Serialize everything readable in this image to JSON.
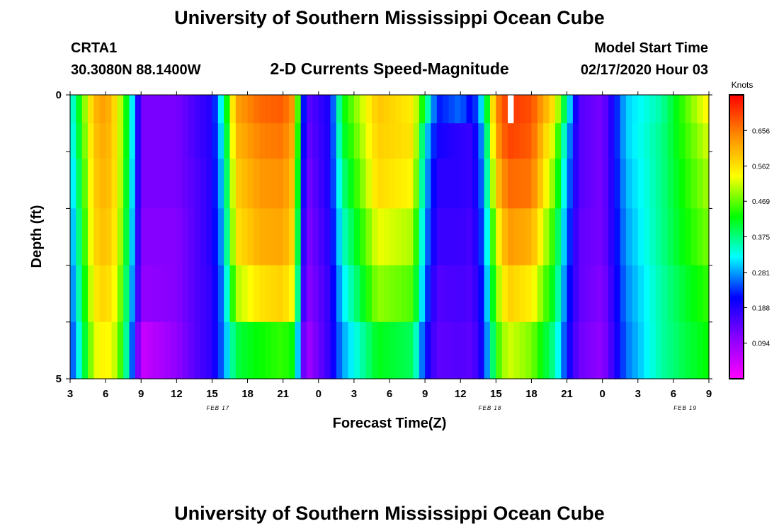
{
  "page": {
    "title_top": "University of Southern Mississippi Ocean Cube",
    "title_bottom": "University of Southern Mississippi Ocean Cube",
    "station_id": "CRTA1",
    "station_coords": "30.3080N 88.1400W",
    "model_start_label": "Model Start Time",
    "model_start_value": "02/17/2020 Hour 03"
  },
  "chart_data": {
    "type": "heatmap",
    "title": "2-D Currents Speed-Magnitude",
    "xlabel": "Forecast Time(Z)",
    "ylabel": "Depth (ft)",
    "x_start_hour": 3,
    "x_hours_total": 54,
    "x_tick_labels": [
      "3",
      "6",
      "9",
      "12",
      "15",
      "18",
      "21",
      "0",
      "3",
      "6",
      "9",
      "12",
      "15",
      "18",
      "21",
      "0",
      "3",
      "6",
      "9"
    ],
    "date_labels": [
      {
        "hour": 15.5,
        "text": "FEB 17"
      },
      {
        "hour": 38.5,
        "text": "FEB 18"
      },
      {
        "hour": 55,
        "text": "FEB 19"
      }
    ],
    "depth_ticks": [
      {
        "depth": 0,
        "label": "0"
      },
      {
        "depth": 1,
        "label": ""
      },
      {
        "depth": 2,
        "label": ""
      },
      {
        "depth": 3,
        "label": ""
      },
      {
        "depth": 4,
        "label": ""
      },
      {
        "depth": 5,
        "label": "5"
      }
    ],
    "ylim": [
      0,
      5
    ],
    "colorbar": {
      "unit": "Knots",
      "min": 0.0,
      "max": 0.75,
      "tick_labels": [
        "0.094",
        "0.188",
        "0.281",
        "0.375",
        "0.469",
        "0.562",
        "0.656"
      ],
      "colors": [
        "#ff00ff",
        "#8a00ff",
        "#0000ff",
        "#00ffff",
        "#00ff00",
        "#ffff00",
        "#ff8c00",
        "#ff0000"
      ]
    },
    "depth_levels": [
      0.25,
      0.75,
      1.5,
      2.5,
      3.5,
      4.5
    ],
    "speed_keyframes": [
      {
        "hour": 3,
        "speed": [
          0.31,
          0.3,
          0.28,
          0.26,
          0.24,
          0.22
        ]
      },
      {
        "hour": 5,
        "speed": [
          0.6,
          0.59,
          0.58,
          0.57,
          0.55,
          0.52
        ]
      },
      {
        "hour": 6,
        "speed": [
          0.63,
          0.62,
          0.61,
          0.6,
          0.58,
          0.55
        ]
      },
      {
        "hour": 7,
        "speed": [
          0.55,
          0.55,
          0.55,
          0.54,
          0.52,
          0.5
        ]
      },
      {
        "hour": 8,
        "speed": [
          0.38,
          0.38,
          0.37,
          0.36,
          0.34,
          0.32
        ]
      },
      {
        "hour": 9,
        "speed": [
          0.12,
          0.12,
          0.12,
          0.11,
          0.1,
          0.05
        ]
      },
      {
        "hour": 12,
        "speed": [
          0.12,
          0.12,
          0.12,
          0.11,
          0.11,
          0.1
        ]
      },
      {
        "hour": 14,
        "speed": [
          0.17,
          0.17,
          0.16,
          0.16,
          0.16,
          0.16
        ]
      },
      {
        "hour": 15,
        "speed": [
          0.19,
          0.19,
          0.19,
          0.19,
          0.18,
          0.18
        ]
      },
      {
        "hour": 16,
        "speed": [
          0.36,
          0.34,
          0.32,
          0.3,
          0.28,
          0.27
        ]
      },
      {
        "hour": 17,
        "speed": [
          0.62,
          0.6,
          0.58,
          0.56,
          0.5,
          0.4
        ]
      },
      {
        "hour": 19,
        "speed": [
          0.67,
          0.65,
          0.63,
          0.61,
          0.56,
          0.43
        ]
      },
      {
        "hour": 21,
        "speed": [
          0.68,
          0.66,
          0.64,
          0.62,
          0.58,
          0.45
        ]
      },
      {
        "hour": 22,
        "speed": [
          0.62,
          0.6,
          0.58,
          0.56,
          0.52,
          0.42
        ]
      },
      {
        "hour": 22.5,
        "speed": [
          0.3,
          0.28,
          0.26,
          0.24,
          0.22,
          0.18
        ]
      },
      {
        "hour": 23,
        "speed": [
          0.14,
          0.13,
          0.12,
          0.11,
          0.1,
          0.08
        ]
      },
      {
        "hour": 25,
        "speed": [
          0.2,
          0.2,
          0.2,
          0.19,
          0.18,
          0.18
        ]
      },
      {
        "hour": 26,
        "speed": [
          0.42,
          0.4,
          0.37,
          0.34,
          0.31,
          0.28
        ]
      },
      {
        "hour": 29,
        "speed": [
          0.59,
          0.58,
          0.57,
          0.53,
          0.49,
          0.42
        ]
      },
      {
        "hour": 32,
        "speed": [
          0.55,
          0.56,
          0.54,
          0.5,
          0.46,
          0.39
        ]
      },
      {
        "hour": 33,
        "speed": [
          0.4,
          0.32,
          0.3,
          0.28,
          0.26,
          0.22
        ]
      },
      {
        "hour": 34,
        "speed": [
          0.22,
          0.2,
          0.18,
          0.17,
          0.15,
          0.14
        ]
      },
      {
        "hour": 36,
        "speed": [
          0.26,
          0.18,
          0.18,
          0.17,
          0.16,
          0.15
        ]
      },
      {
        "hour": 37,
        "speed": [
          0.2,
          0.17,
          0.17,
          0.16,
          0.15,
          0.14
        ]
      },
      {
        "hour": 38,
        "speed": [
          0.34,
          0.3,
          0.28,
          0.26,
          0.24,
          0.22
        ]
      },
      {
        "hour": 39,
        "speed": [
          0.64,
          0.62,
          0.58,
          0.52,
          0.48,
          0.44
        ]
      },
      {
        "hour": 40,
        "speed": [
          0.71,
          0.7,
          0.67,
          0.63,
          0.58,
          0.52
        ]
      },
      {
        "hour": 42,
        "speed": [
          0.69,
          0.68,
          0.66,
          0.61,
          0.55,
          0.48
        ]
      },
      {
        "hour": 44,
        "speed": [
          0.55,
          0.5,
          0.47,
          0.43,
          0.4,
          0.36
        ]
      },
      {
        "hour": 45,
        "speed": [
          0.35,
          0.3,
          0.28,
          0.26,
          0.24,
          0.22
        ]
      },
      {
        "hour": 46,
        "speed": [
          0.15,
          0.15,
          0.15,
          0.14,
          0.14,
          0.13
        ]
      },
      {
        "hour": 48,
        "speed": [
          0.12,
          0.12,
          0.12,
          0.12,
          0.11,
          0.1
        ]
      },
      {
        "hour": 50,
        "speed": [
          0.3,
          0.3,
          0.29,
          0.28,
          0.27,
          0.26
        ]
      },
      {
        "hour": 53,
        "speed": [
          0.36,
          0.37,
          0.37,
          0.37,
          0.36,
          0.36
        ]
      },
      {
        "hour": 55,
        "speed": [
          0.46,
          0.45,
          0.44,
          0.43,
          0.41,
          0.4
        ]
      },
      {
        "hour": 57,
        "speed": [
          0.55,
          0.52,
          0.5,
          0.48,
          0.45,
          0.43
        ]
      }
    ],
    "missing_data": [
      {
        "hour_start": 40.0,
        "hour_end": 40.5,
        "depth_start": 0.0,
        "depth_end": 0.5
      }
    ]
  }
}
